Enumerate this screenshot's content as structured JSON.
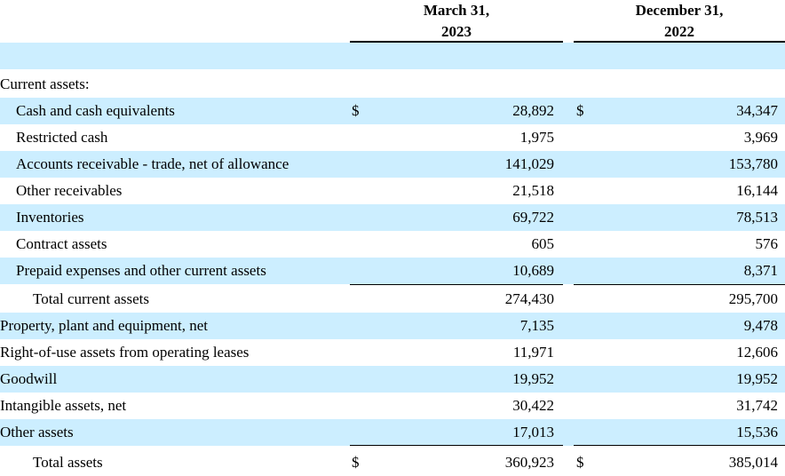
{
  "header": {
    "col1": {
      "line1": "March 31,",
      "line2": "2023"
    },
    "col2": {
      "line1": "December 31,",
      "line2": "2022"
    }
  },
  "rows": [
    {
      "label": "Current assets:",
      "indent": 0,
      "shade": false,
      "cur1": "",
      "v1": "",
      "cur2": "",
      "v2": ""
    },
    {
      "label": "Cash and cash equivalents",
      "indent": 1,
      "shade": true,
      "cur1": "$",
      "v1": "28,892",
      "cur2": "$",
      "v2": "34,347"
    },
    {
      "label": "Restricted cash",
      "indent": 1,
      "shade": false,
      "cur1": "",
      "v1": "1,975",
      "cur2": "",
      "v2": "3,969"
    },
    {
      "label": "Accounts receivable - trade, net of allowance",
      "indent": 1,
      "shade": true,
      "cur1": "",
      "v1": "141,029",
      "cur2": "",
      "v2": "153,780"
    },
    {
      "label": "Other receivables",
      "indent": 1,
      "shade": false,
      "cur1": "",
      "v1": "21,518",
      "cur2": "",
      "v2": "16,144"
    },
    {
      "label": "Inventories",
      "indent": 1,
      "shade": true,
      "cur1": "",
      "v1": "69,722",
      "cur2": "",
      "v2": "78,513"
    },
    {
      "label": "Contract assets",
      "indent": 1,
      "shade": false,
      "cur1": "",
      "v1": "605",
      "cur2": "",
      "v2": "576"
    },
    {
      "label": "Prepaid expenses and other current assets",
      "indent": 1,
      "shade": true,
      "cur1": "",
      "v1": "10,689",
      "cur2": "",
      "v2": "8,371"
    },
    {
      "label": "Total current assets",
      "indent": 2,
      "shade": false,
      "cur1": "",
      "v1": "274,430",
      "cur2": "",
      "v2": "295,700"
    },
    {
      "label": "Property, plant and equipment, net",
      "indent": 0,
      "shade": true,
      "cur1": "",
      "v1": "7,135",
      "cur2": "",
      "v2": "9,478"
    },
    {
      "label": "Right-of-use assets from operating leases",
      "indent": 0,
      "shade": false,
      "cur1": "",
      "v1": "11,971",
      "cur2": "",
      "v2": "12,606"
    },
    {
      "label": "Goodwill",
      "indent": 0,
      "shade": true,
      "cur1": "",
      "v1": "19,952",
      "cur2": "",
      "v2": "19,952"
    },
    {
      "label": "Intangible assets, net",
      "indent": 0,
      "shade": false,
      "cur1": "",
      "v1": "30,422",
      "cur2": "",
      "v2": "31,742"
    },
    {
      "label": "Other assets",
      "indent": 0,
      "shade": true,
      "cur1": "",
      "v1": "17,013",
      "cur2": "",
      "v2": "15,536"
    },
    {
      "label": "Total assets",
      "indent": 2,
      "shade": false,
      "cur1": "$",
      "v1": "360,923",
      "cur2": "$",
      "v2": "385,014"
    }
  ],
  "colors": {
    "shade": "#cceeff"
  }
}
